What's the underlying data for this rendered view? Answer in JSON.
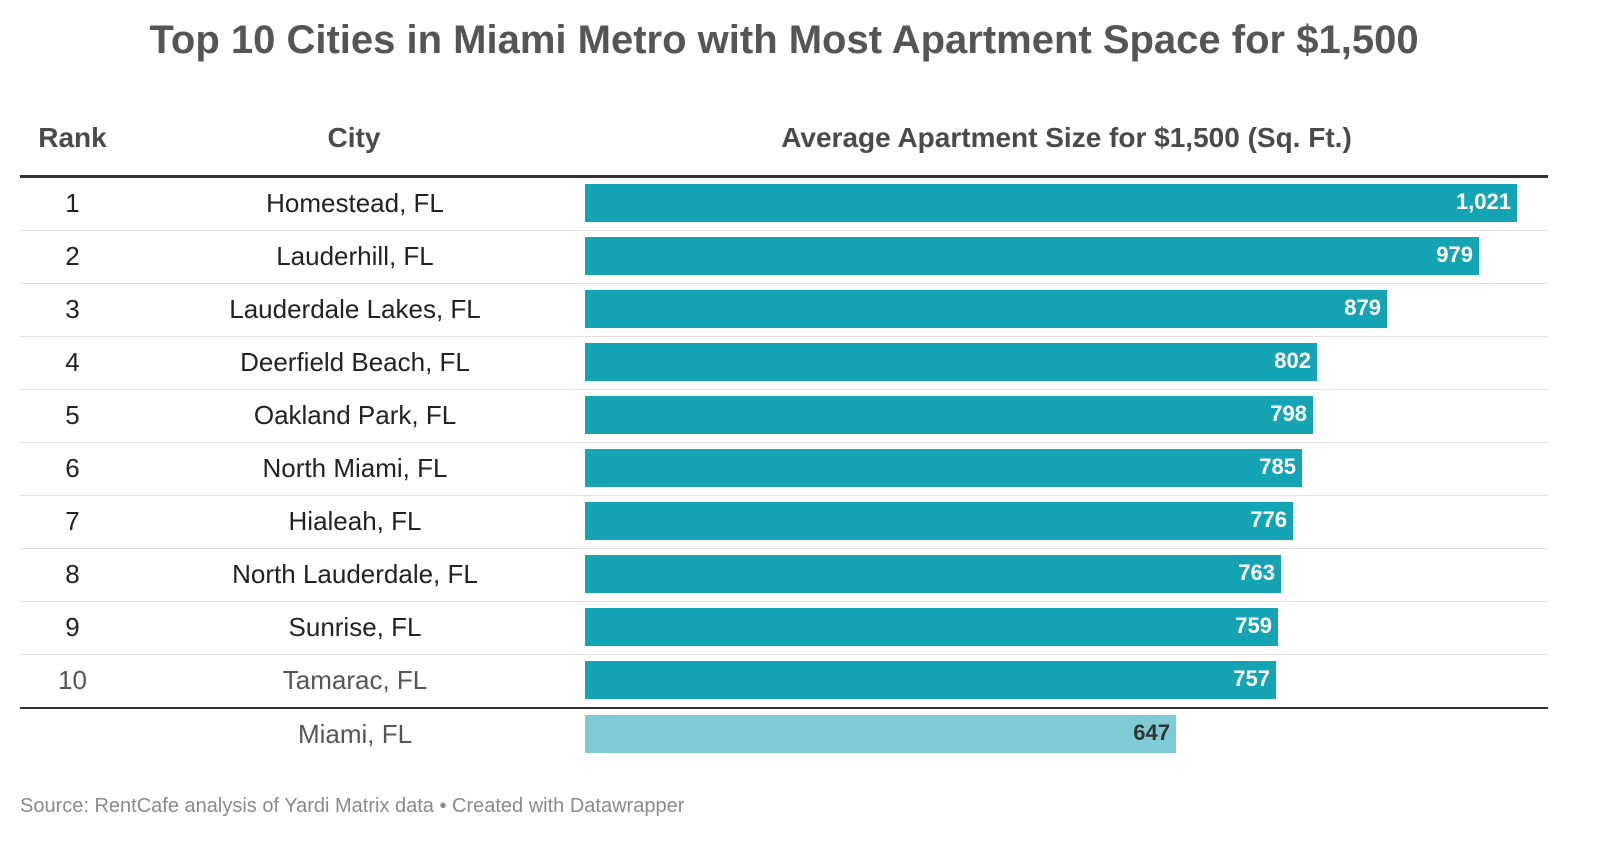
{
  "title": "Top 10 Cities in Miami Metro with Most Apartment Space for $1,500",
  "columns": {
    "rank": "Rank",
    "city": "City",
    "size": "Average Apartment Size for $1,500 (Sq. Ft.)"
  },
  "colors": {
    "bar": "#14a4b4",
    "benchmark_bar": "#7fcbd5"
  },
  "chart_data": {
    "type": "bar",
    "orientation": "horizontal",
    "xlim": [
      0,
      1021
    ],
    "grid": false,
    "rows": [
      {
        "rank": "1",
        "city": "Homestead, FL",
        "value": 1021,
        "label": "1,021"
      },
      {
        "rank": "2",
        "city": "Lauderhill, FL",
        "value": 979,
        "label": "979"
      },
      {
        "rank": "3",
        "city": "Lauderdale Lakes, FL",
        "value": 879,
        "label": "879"
      },
      {
        "rank": "4",
        "city": "Deerfield Beach, FL",
        "value": 802,
        "label": "802"
      },
      {
        "rank": "5",
        "city": "Oakland Park, FL",
        "value": 798,
        "label": "798"
      },
      {
        "rank": "6",
        "city": "North Miami, FL",
        "value": 785,
        "label": "785"
      },
      {
        "rank": "7",
        "city": "Hialeah, FL",
        "value": 776,
        "label": "776"
      },
      {
        "rank": "8",
        "city": "North Lauderdale, FL",
        "value": 763,
        "label": "763"
      },
      {
        "rank": "9",
        "city": "Sunrise, FL",
        "value": 759,
        "label": "759"
      },
      {
        "rank": "10",
        "city": "Tamarac, FL",
        "value": 757,
        "label": "757"
      }
    ],
    "benchmark": {
      "rank": "",
      "city": "Miami, FL",
      "value": 647,
      "label": "647"
    }
  },
  "footer": "Source: RentCafe analysis of Yardi Matrix data • Created with Datawrapper"
}
